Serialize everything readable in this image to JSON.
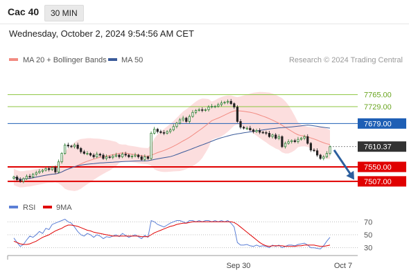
{
  "header": {
    "instrument": "Cac 40",
    "timeframe": "30 MIN",
    "datetime": "Wednesday, October 2, 2024 9:54:56 AM CET"
  },
  "legend": {
    "items": [
      {
        "label": "MA 20 + Bollinger Bands",
        "color": "#f28b82"
      },
      {
        "label": "MA 50",
        "color": "#3b5b9a"
      }
    ],
    "credit": "Research © 2024 Trading Central"
  },
  "chart_data": [
    {
      "type": "candlestick",
      "ylim": [
        7480,
        7830
      ],
      "grid": false,
      "x_ticks": [
        "Sep 30",
        "Oct 7"
      ],
      "closes": [
        7520,
        7512,
        7507,
        7515,
        7522,
        7520,
        7528,
        7533,
        7537,
        7540,
        7545,
        7542,
        7548,
        7535,
        7565,
        7590,
        7615,
        7612,
        7610,
        7615,
        7605,
        7595,
        7590,
        7590,
        7585,
        7580,
        7588,
        7585,
        7575,
        7580,
        7578,
        7582,
        7585,
        7580,
        7588,
        7585,
        7580,
        7582,
        7585,
        7580,
        7572,
        7580,
        7575,
        7650,
        7662,
        7655,
        7652,
        7650,
        7655,
        7660,
        7670,
        7680,
        7690,
        7695,
        7685,
        7700,
        7712,
        7718,
        7720,
        7718,
        7720,
        7728,
        7730,
        7730,
        7735,
        7740,
        7742,
        7745,
        7738,
        7728,
        7685,
        7668,
        7665,
        7665,
        7660,
        7655,
        7658,
        7653,
        7652,
        7650,
        7640,
        7645,
        7635,
        7640,
        7610,
        7620,
        7625,
        7628,
        7625,
        7632,
        7635,
        7640,
        7620,
        7600,
        7598,
        7585,
        7575,
        7580,
        7590,
        7610
      ],
      "price_lines": [
        {
          "value": 7765.0,
          "label": "7765.00",
          "color": "#8cc63f",
          "kind": "resistance"
        },
        {
          "value": 7729.0,
          "label": "7729.00",
          "color": "#8cc63f",
          "kind": "resistance"
        },
        {
          "value": 7679.0,
          "label": "7679.00",
          "color": "#1e5fb5",
          "kind": "pivot"
        },
        {
          "value": 7550.0,
          "label": "7550.00",
          "color": "#e00000",
          "kind": "support"
        },
        {
          "value": 7507.0,
          "label": "7507.00",
          "color": "#e00000",
          "kind": "support"
        }
      ],
      "last_price": {
        "value": 7610.37,
        "label": "7610.37",
        "color": "#333333"
      },
      "forecast_arrow": {
        "from": 7600,
        "to": 7512,
        "color": "#2c5f9e"
      }
    },
    {
      "type": "line",
      "name": "RSI panel",
      "ylim": [
        20,
        80
      ],
      "y_ticks": [
        "70",
        "50",
        "30"
      ],
      "series": [
        {
          "name": "RSI",
          "color": "#5b7fd6",
          "values": [
            45,
            38,
            32,
            35,
            42,
            48,
            46,
            50,
            55,
            52,
            60,
            58,
            66,
            68,
            70,
            72,
            74,
            70,
            68,
            62,
            55,
            50,
            48,
            52,
            50,
            46,
            50,
            48,
            44,
            47,
            46,
            48,
            50,
            47,
            52,
            49,
            46,
            48,
            50,
            47,
            44,
            49,
            46,
            72,
            70,
            66,
            64,
            62,
            65,
            68,
            70,
            72,
            72,
            70,
            68,
            72,
            72,
            70,
            72,
            70,
            72,
            72,
            70,
            72,
            70,
            72,
            70,
            72,
            68,
            62,
            38,
            34,
            34,
            35,
            33,
            32,
            34,
            32,
            33,
            32,
            30,
            34,
            32,
            34,
            30,
            32,
            34,
            34,
            33,
            35,
            36,
            37,
            34,
            30,
            30,
            29,
            28,
            33,
            40,
            46
          ]
        },
        {
          "name": "9MA",
          "color": "#e00000",
          "values": [
            40,
            38,
            36,
            35,
            35,
            36,
            38,
            40,
            43,
            46,
            48,
            50,
            53,
            56,
            58,
            60,
            63,
            65,
            65,
            64,
            63,
            61,
            59,
            57,
            56,
            54,
            53,
            52,
            51,
            50,
            49,
            48,
            48,
            48,
            48,
            48,
            48,
            48,
            48,
            48,
            47,
            47,
            47,
            50,
            53,
            55,
            57,
            59,
            61,
            63,
            64,
            66,
            67,
            68,
            68,
            69,
            70,
            70,
            70,
            70,
            70,
            70,
            70,
            70,
            70,
            70,
            70,
            70,
            70,
            69,
            66,
            62,
            58,
            54,
            50,
            46,
            42,
            38,
            35,
            33,
            32,
            33,
            33,
            33,
            33,
            32,
            32,
            32,
            32,
            33,
            33,
            34,
            34,
            34,
            34,
            33,
            32,
            32,
            33,
            34
          ]
        }
      ]
    }
  ]
}
